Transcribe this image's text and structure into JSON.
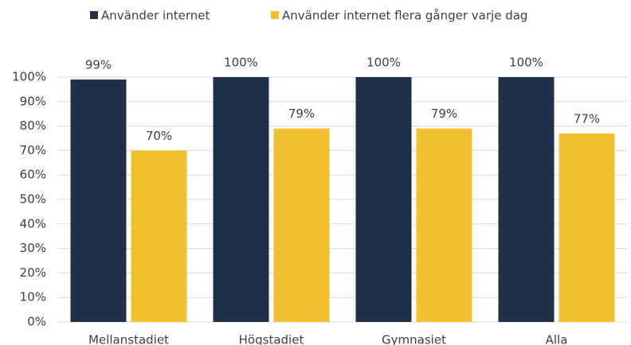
{
  "chart_data": {
    "type": "bar",
    "categories": [
      "Mellanstadiet",
      "Högstadiet",
      "Gymnasiet",
      "Alla"
    ],
    "series": [
      {
        "name": "Använder internet",
        "color": "#1f3148",
        "values": [
          99,
          100,
          100,
          100
        ],
        "value_labels": [
          "99%",
          "100%",
          "100%",
          "100%"
        ]
      },
      {
        "name": "Använder internet flera gånger varje dag",
        "color": "#f0c030",
        "values": [
          70,
          79,
          79,
          77
        ],
        "value_labels": [
          "70%",
          "79%",
          "79%",
          "77%"
        ]
      }
    ],
    "ylim": [
      0,
      100
    ],
    "yticks": [
      {
        "value": 0,
        "label": "0%"
      },
      {
        "value": 10,
        "label": "10%"
      },
      {
        "value": 20,
        "label": "20%"
      },
      {
        "value": 30,
        "label": "30%"
      },
      {
        "value": 40,
        "label": "40%"
      },
      {
        "value": 50,
        "label": "50%"
      },
      {
        "value": 60,
        "label": "60%"
      },
      {
        "value": 70,
        "label": "70%"
      },
      {
        "value": 80,
        "label": "80%"
      },
      {
        "value": 90,
        "label": "90%"
      },
      {
        "value": 100,
        "label": "100%"
      }
    ],
    "grid": true,
    "legend": "top"
  }
}
